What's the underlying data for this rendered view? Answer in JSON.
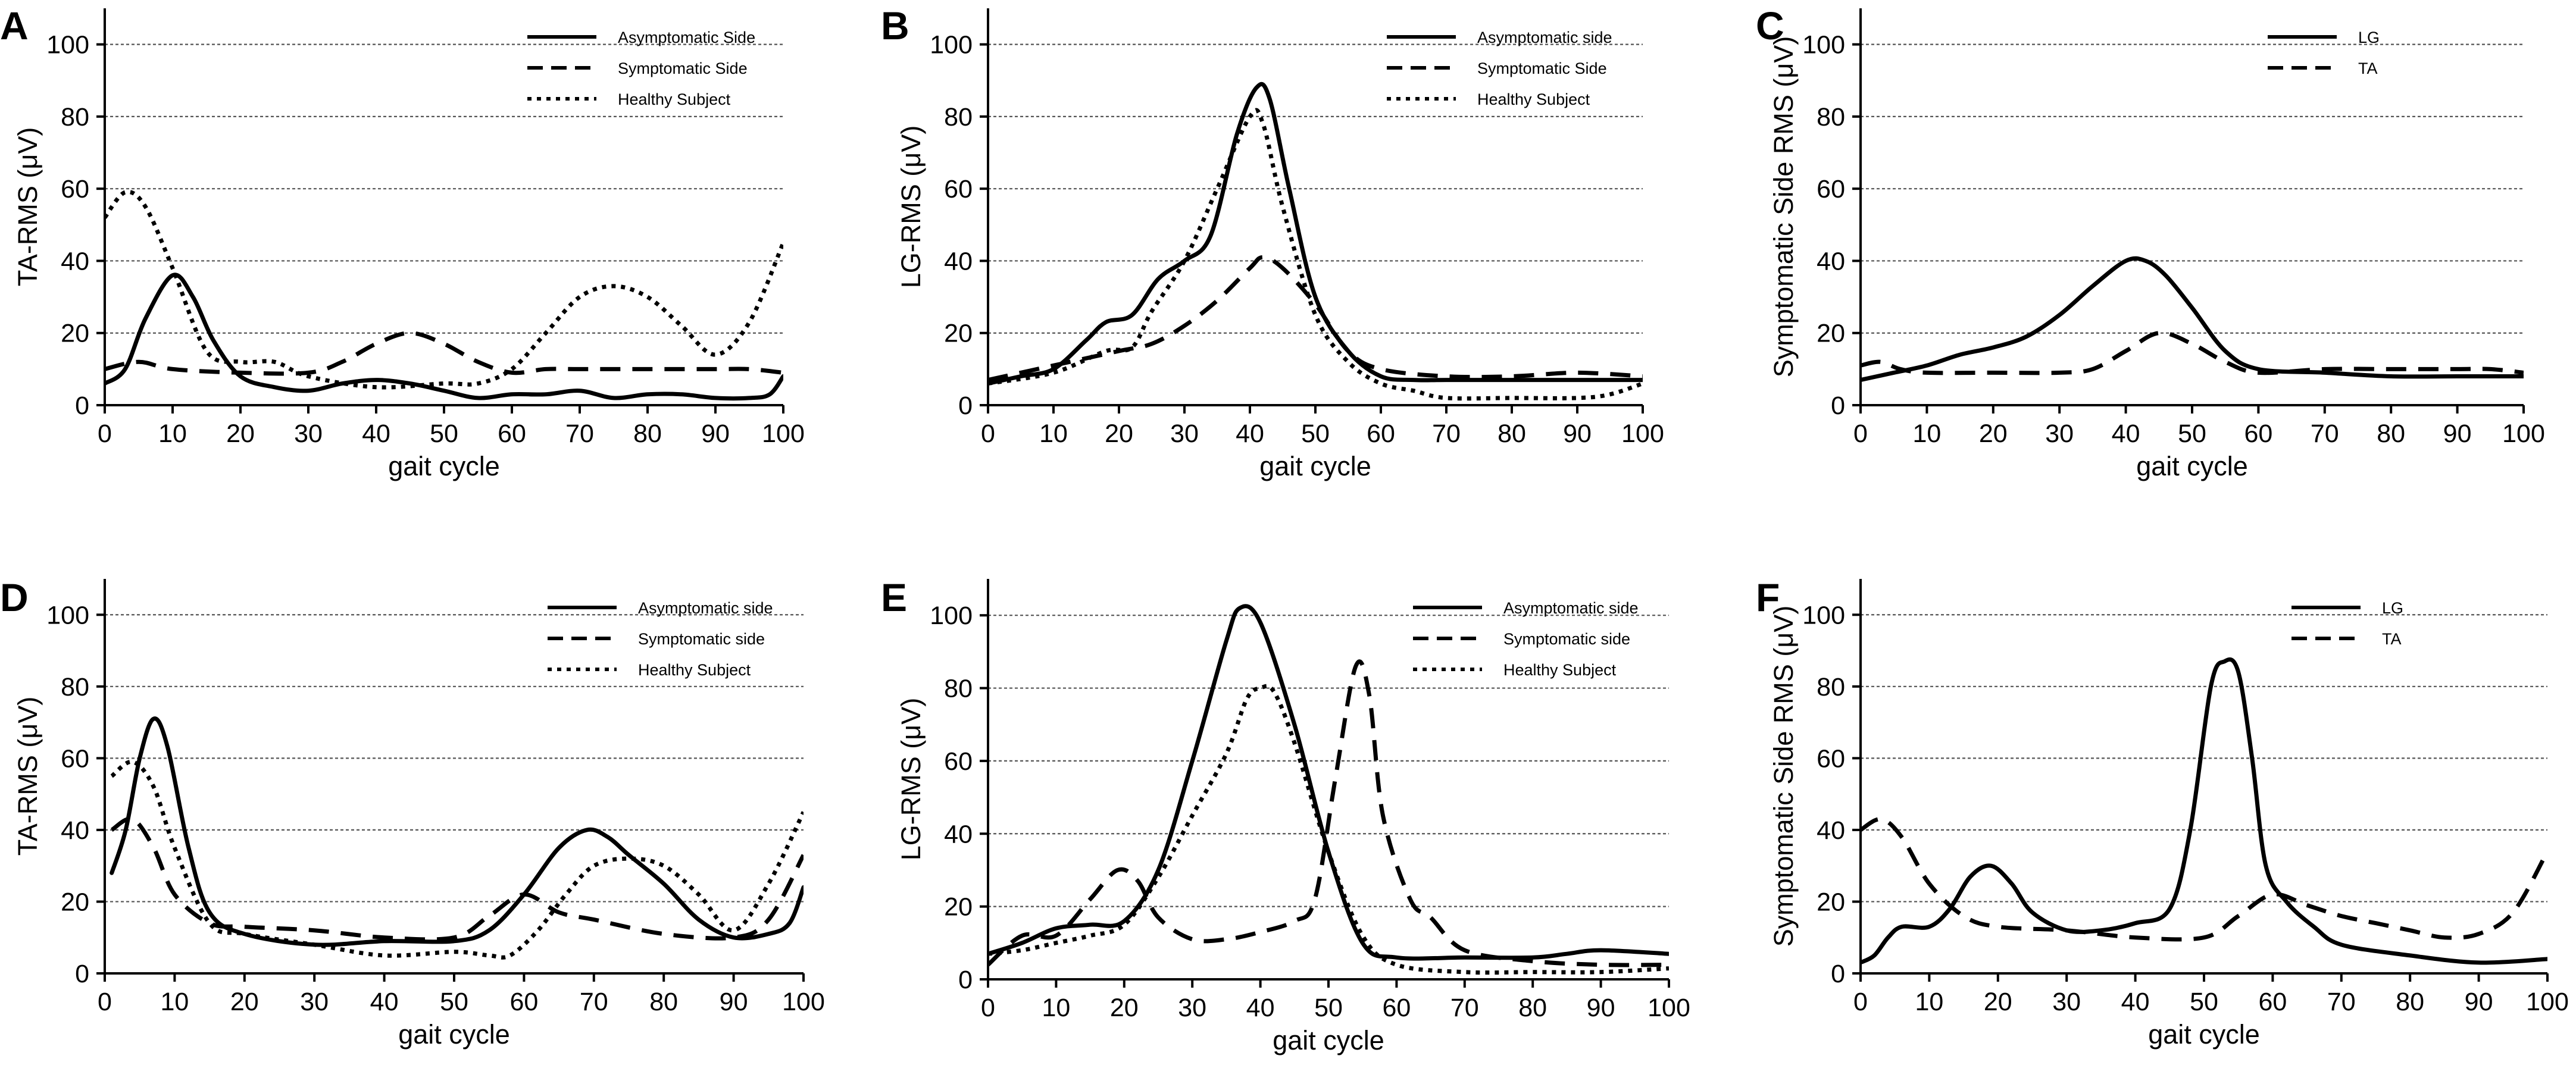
{
  "figure": {
    "chart_data": [
      {
        "panel": "A",
        "type": "line",
        "ylabel": "TA-RMS (μV)",
        "xlabel": "gait cycle",
        "xlim": [
          0,
          100
        ],
        "ylim": [
          0,
          110
        ],
        "xticks": [
          0,
          10,
          20,
          30,
          40,
          50,
          60,
          70,
          80,
          90,
          100
        ],
        "yticks": [
          0,
          20,
          40,
          60,
          80,
          100
        ],
        "grid_y": [
          20,
          40,
          60,
          80,
          100
        ],
        "legend_position": "top-right",
        "series": [
          {
            "name": "Asymptomatic Side",
            "style": "solid",
            "x": [
              0,
              3,
              6,
              10,
              13,
              16,
              20,
              25,
              30,
              35,
              40,
              45,
              50,
              55,
              60,
              65,
              70,
              75,
              80,
              85,
              90,
              95,
              98,
              100
            ],
            "y": [
              6,
              10,
              24,
              36,
              30,
              18,
              8,
              5,
              4,
              6,
              7,
              6,
              4,
              2,
              3,
              3,
              4,
              2,
              3,
              3,
              2,
              2,
              3,
              8
            ]
          },
          {
            "name": "Symptomatic Side",
            "style": "dashed",
            "x": [
              0,
              5,
              10,
              20,
              30,
              35,
              40,
              45,
              50,
              55,
              60,
              65,
              70,
              80,
              90,
              95,
              100
            ],
            "y": [
              10,
              12,
              10,
              9,
              9,
              12,
              17,
              20,
              17,
              12,
              9,
              10,
              10,
              10,
              10,
              10,
              9
            ]
          },
          {
            "name": "Healthy Subject",
            "style": "dotted",
            "x": [
              0,
              3,
              6,
              10,
              15,
              20,
              25,
              30,
              40,
              50,
              55,
              60,
              65,
              70,
              75,
              80,
              85,
              90,
              95,
              100
            ],
            "y": [
              52,
              59,
              55,
              38,
              15,
              12,
              12,
              8,
              5,
              6,
              6,
              10,
              20,
              30,
              33,
              30,
              22,
              14,
              23,
              45
            ]
          }
        ]
      },
      {
        "panel": "B",
        "type": "line",
        "ylabel": "LG-RMS (μV)",
        "xlabel": "gait cycle",
        "xlim": [
          0,
          100
        ],
        "ylim": [
          0,
          110
        ],
        "xticks": [
          0,
          10,
          20,
          30,
          40,
          50,
          60,
          70,
          80,
          90,
          100
        ],
        "yticks": [
          0,
          20,
          40,
          60,
          80,
          100
        ],
        "grid_y": [
          20,
          40,
          60,
          80,
          100
        ],
        "legend_position": "top-right",
        "series": [
          {
            "name": "Asymptomatic side",
            "style": "solid",
            "x": [
              0,
              5,
              10,
              15,
              18,
              22,
              26,
              30,
              34,
              38,
              41,
              43,
              46,
              50,
              55,
              60,
              65,
              70,
              80,
              90,
              100
            ],
            "y": [
              6,
              8,
              10,
              18,
              23,
              25,
              35,
              40,
              47,
              75,
              88,
              85,
              60,
              30,
              15,
              8,
              7,
              7,
              7,
              7,
              7
            ]
          },
          {
            "name": "Symptomatic Side",
            "style": "dashed",
            "x": [
              0,
              10,
              20,
              25,
              30,
              35,
              40,
              42,
              45,
              50,
              55,
              60,
              70,
              80,
              90,
              100
            ],
            "y": [
              7,
              11,
              15,
              17,
              22,
              29,
              38,
              41,
              38,
              28,
              15,
              10,
              8,
              8,
              9,
              8
            ]
          },
          {
            "name": "Healthy Subject",
            "style": "dotted",
            "x": [
              0,
              10,
              18,
              22,
              25,
              30,
              35,
              40,
              42,
              45,
              50,
              55,
              60,
              65,
              70,
              80,
              90,
              95,
              100
            ],
            "y": [
              6,
              9,
              15,
              16,
              26,
              40,
              60,
              80,
              78,
              55,
              25,
              12,
              6,
              4,
              2,
              2,
              2,
              3,
              6
            ]
          }
        ]
      },
      {
        "panel": "C",
        "type": "line",
        "ylabel": "Symptomatic Side RMS (μV)",
        "xlabel": "gait cycle",
        "xlim": [
          0,
          100
        ],
        "ylim": [
          0,
          110
        ],
        "xticks": [
          0,
          10,
          20,
          30,
          40,
          50,
          60,
          70,
          80,
          90,
          100
        ],
        "yticks": [
          0,
          20,
          40,
          60,
          80,
          100
        ],
        "grid_y": [
          20,
          40,
          60,
          80,
          100
        ],
        "legend_position": "top-right",
        "series": [
          {
            "name": "LG",
            "style": "solid",
            "x": [
              0,
              5,
              10,
              15,
              20,
              25,
              30,
              35,
              40,
              43,
              46,
              50,
              55,
              60,
              70,
              80,
              90,
              100
            ],
            "y": [
              7,
              9,
              11,
              14,
              16,
              19,
              25,
              33,
              40,
              40,
              36,
              27,
              15,
              10,
              9,
              8,
              8,
              8
            ]
          },
          {
            "name": "TA",
            "style": "dashed",
            "x": [
              0,
              3,
              6,
              10,
              20,
              30,
              35,
              40,
              45,
              50,
              55,
              60,
              70,
              80,
              90,
              95,
              100
            ],
            "y": [
              11,
              12,
              10,
              9,
              9,
              9,
              10,
              15,
              20,
              17,
              12,
              9,
              10,
              10,
              10,
              10,
              9
            ]
          }
        ]
      },
      {
        "panel": "D",
        "type": "line",
        "ylabel": "TA-RMS (μV)",
        "xlabel": "gait cycle",
        "xlim": [
          0,
          100
        ],
        "ylim": [
          0,
          110
        ],
        "xticks": [
          0,
          10,
          20,
          30,
          40,
          50,
          60,
          70,
          80,
          90,
          100
        ],
        "yticks": [
          0,
          20,
          40,
          60,
          80,
          100
        ],
        "grid_y": [
          20,
          40,
          60,
          80,
          100
        ],
        "legend_position": "top-right",
        "series": [
          {
            "name": "Asymptomatic side",
            "style": "solid",
            "x": [
              1,
              3,
              5,
              7,
              9,
              12,
              15,
              20,
              30,
              40,
              50,
              55,
              60,
              65,
              69,
              72,
              75,
              80,
              85,
              90,
              95,
              98,
              100
            ],
            "y": [
              28,
              40,
              60,
              71,
              63,
              35,
              17,
              11,
              8,
              9,
              9,
              12,
              22,
              35,
              40,
              38,
              33,
              25,
              15,
              10,
              11,
              14,
              24
            ]
          },
          {
            "name": "Symptomatic side",
            "style": "dashed",
            "x": [
              1,
              4,
              7,
              10,
              15,
              20,
              30,
              40,
              50,
              55,
              60,
              65,
              70,
              80,
              90,
              95,
              100
            ],
            "y": [
              40,
              43,
              35,
              22,
              14,
              13,
              12,
              10,
              10,
              16,
              22,
              17,
              15,
              11,
              10,
              15,
              33
            ]
          },
          {
            "name": "Healthy Subject",
            "style": "dotted",
            "x": [
              1,
              4,
              7,
              10,
              15,
              20,
              30,
              40,
              50,
              55,
              58,
              62,
              66,
              70,
              75,
              80,
              85,
              90,
              95,
              100
            ],
            "y": [
              55,
              59,
              52,
              35,
              14,
              11,
              8,
              5,
              6,
              5,
              5,
              12,
              22,
              30,
              32,
              30,
              22,
              12,
              25,
              45
            ]
          }
        ]
      },
      {
        "panel": "E",
        "type": "line",
        "ylabel": "LG-RMS (μV)",
        "xlabel": "gait cycle",
        "xlim": [
          0,
          100
        ],
        "ylim": [
          0,
          110
        ],
        "xticks": [
          0,
          10,
          20,
          30,
          40,
          50,
          60,
          70,
          80,
          90,
          100
        ],
        "yticks": [
          0,
          20,
          40,
          60,
          80,
          100
        ],
        "grid_y": [
          20,
          40,
          60,
          80,
          100
        ],
        "legend_position": "top-right",
        "series": [
          {
            "name": "Asymptomatic side",
            "style": "solid",
            "x": [
              0,
              5,
              10,
              15,
              20,
              25,
              30,
              35,
              37,
              40,
              45,
              50,
              55,
              60,
              70,
              80,
              85,
              90,
              100
            ],
            "y": [
              7,
              10,
              14,
              15,
              16,
              30,
              60,
              93,
              102,
              98,
              70,
              35,
              10,
              6,
              6,
              6,
              7,
              8,
              7
            ]
          },
          {
            "name": "Symptomatic side",
            "style": "dashed",
            "x": [
              0,
              5,
              10,
              15,
              19,
              22,
              25,
              30,
              35,
              40,
              45,
              48,
              51,
              54,
              56,
              58,
              62,
              65,
              70,
              80,
              90,
              100
            ],
            "y": [
              4,
              12,
              12,
              22,
              30,
              27,
              17,
              11,
              11,
              13,
              16,
              22,
              55,
              86,
              78,
              45,
              22,
              17,
              8,
              5,
              4,
              4
            ]
          },
          {
            "name": "Healthy Subject",
            "style": "dotted",
            "x": [
              0,
              5,
              10,
              15,
              20,
              25,
              30,
              35,
              38,
              40,
              42,
              45,
              50,
              55,
              60,
              70,
              80,
              90,
              100
            ],
            "y": [
              7,
              8,
              10,
              12,
              15,
              28,
              45,
              62,
              77,
              80,
              79,
              65,
              35,
              12,
              4,
              2,
              2,
              2,
              3
            ]
          }
        ]
      },
      {
        "panel": "F",
        "type": "line",
        "ylabel": "Symptomatic Side RMS (μV)",
        "xlabel": "gait cycle",
        "xlim": [
          0,
          100
        ],
        "ylim": [
          0,
          110
        ],
        "xticks": [
          0,
          10,
          20,
          30,
          40,
          50,
          60,
          70,
          80,
          90,
          100
        ],
        "yticks": [
          0,
          20,
          40,
          60,
          80,
          100
        ],
        "grid_y": [
          20,
          40,
          60,
          80,
          100
        ],
        "legend_position": "top-right",
        "series": [
          {
            "name": "LG",
            "style": "solid",
            "x": [
              0,
              2,
              4,
              6,
              10,
              13,
              16,
              19,
              22,
              25,
              30,
              35,
              40,
              45,
              48,
              51,
              53,
              55,
              57,
              59,
              62,
              66,
              70,
              80,
              90,
              100
            ],
            "y": [
              3,
              5,
              10,
              13,
              13,
              18,
              27,
              30,
              25,
              17,
              12,
              12,
              14,
              18,
              40,
              80,
              87,
              84,
              60,
              30,
              20,
              13,
              8,
              5,
              3,
              4
            ]
          },
          {
            "name": "TA",
            "style": "dashed",
            "x": [
              0,
              3,
              6,
              10,
              15,
              20,
              30,
              40,
              50,
              55,
              60,
              65,
              70,
              75,
              80,
              85,
              90,
              95,
              100
            ],
            "y": [
              40,
              43,
              38,
              25,
              16,
              13,
              12,
              10,
              10,
              16,
              22,
              19,
              16,
              14,
              12,
              10,
              11,
              17,
              34
            ]
          }
        ]
      }
    ]
  }
}
